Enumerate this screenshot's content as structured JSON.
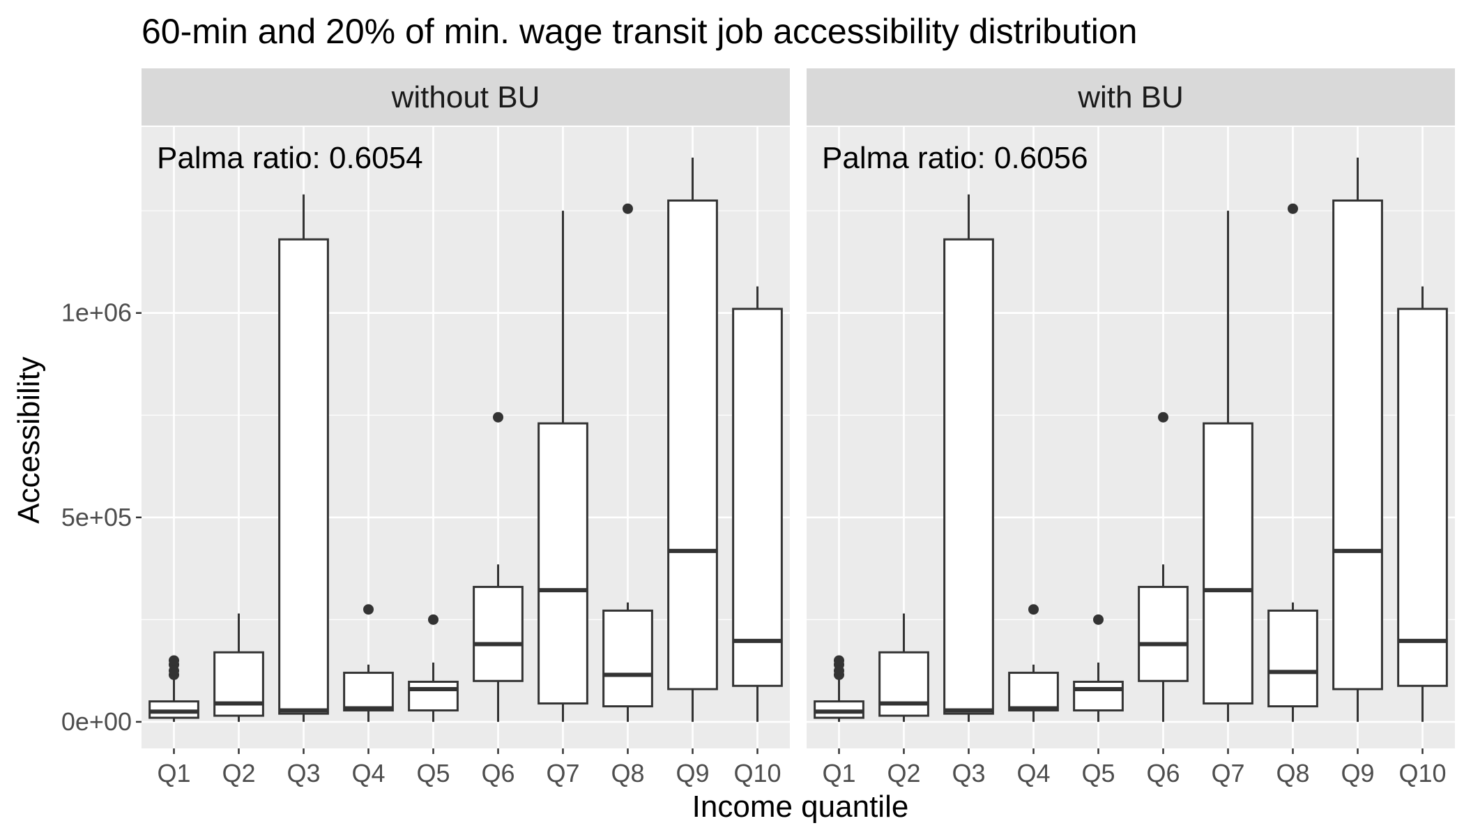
{
  "chart_data": {
    "type": "boxplot",
    "title": "60-min and 20% of min. wage transit job accessibility distribution",
    "xlabel": "Income quantile",
    "ylabel": "Accessibility",
    "ylim": [
      -65000,
      1455000
    ],
    "y_ticks": [
      {
        "value": 0,
        "label": "0e+00"
      },
      {
        "value": 500000,
        "label": "5e+05"
      },
      {
        "value": 1000000,
        "label": "1e+06"
      }
    ],
    "categories": [
      "Q1",
      "Q2",
      "Q3",
      "Q4",
      "Q5",
      "Q6",
      "Q7",
      "Q8",
      "Q9",
      "Q10"
    ],
    "panels": [
      {
        "name": "without BU",
        "annotation": "Palma ratio: 0.6054",
        "boxes": [
          {
            "category": "Q1",
            "whisker_low": 0,
            "q1": 10000,
            "median": 25000,
            "q3": 50000,
            "whisker_high": 105000,
            "outliers": [
              115000,
              125000,
              140000,
              150000
            ]
          },
          {
            "category": "Q2",
            "whisker_low": 0,
            "q1": 15000,
            "median": 45000,
            "q3": 170000,
            "whisker_high": 265000,
            "outliers": []
          },
          {
            "category": "Q3",
            "whisker_low": 0,
            "q1": 20000,
            "median": 28000,
            "q3": 1180000,
            "whisker_high": 1290000,
            "outliers": []
          },
          {
            "category": "Q4",
            "whisker_low": 0,
            "q1": 28000,
            "median": 33000,
            "q3": 120000,
            "whisker_high": 140000,
            "outliers": [
              275000
            ]
          },
          {
            "category": "Q5",
            "whisker_low": 0,
            "q1": 28000,
            "median": 80000,
            "q3": 98000,
            "whisker_high": 145000,
            "outliers": [
              250000
            ]
          },
          {
            "category": "Q6",
            "whisker_low": 0,
            "q1": 100000,
            "median": 190000,
            "q3": 330000,
            "whisker_high": 385000,
            "outliers": [
              745000
            ]
          },
          {
            "category": "Q7",
            "whisker_low": 0,
            "q1": 45000,
            "median": 322000,
            "q3": 730000,
            "whisker_high": 1250000,
            "outliers": []
          },
          {
            "category": "Q8",
            "whisker_low": 0,
            "q1": 38000,
            "median": 115000,
            "q3": 272000,
            "whisker_high": 292000,
            "outliers": [
              1255000
            ]
          },
          {
            "category": "Q9",
            "whisker_low": 0,
            "q1": 80000,
            "median": 418000,
            "q3": 1275000,
            "whisker_high": 1380000,
            "outliers": []
          },
          {
            "category": "Q10",
            "whisker_low": 0,
            "q1": 88000,
            "median": 198000,
            "q3": 1010000,
            "whisker_high": 1065000,
            "outliers": []
          }
        ]
      },
      {
        "name": "with BU",
        "annotation": "Palma ratio: 0.6056",
        "boxes": [
          {
            "category": "Q1",
            "whisker_low": 0,
            "q1": 10000,
            "median": 25000,
            "q3": 50000,
            "whisker_high": 105000,
            "outliers": [
              115000,
              125000,
              140000,
              150000
            ]
          },
          {
            "category": "Q2",
            "whisker_low": 0,
            "q1": 15000,
            "median": 45000,
            "q3": 170000,
            "whisker_high": 265000,
            "outliers": []
          },
          {
            "category": "Q3",
            "whisker_low": 0,
            "q1": 20000,
            "median": 28000,
            "q3": 1180000,
            "whisker_high": 1290000,
            "outliers": []
          },
          {
            "category": "Q4",
            "whisker_low": 0,
            "q1": 28000,
            "median": 33000,
            "q3": 120000,
            "whisker_high": 140000,
            "outliers": [
              275000
            ]
          },
          {
            "category": "Q5",
            "whisker_low": 0,
            "q1": 28000,
            "median": 80000,
            "q3": 98000,
            "whisker_high": 145000,
            "outliers": [
              250000
            ]
          },
          {
            "category": "Q6",
            "whisker_low": 0,
            "q1": 100000,
            "median": 190000,
            "q3": 330000,
            "whisker_high": 385000,
            "outliers": [
              745000
            ]
          },
          {
            "category": "Q7",
            "whisker_low": 0,
            "q1": 45000,
            "median": 322000,
            "q3": 730000,
            "whisker_high": 1250000,
            "outliers": []
          },
          {
            "category": "Q8",
            "whisker_low": 0,
            "q1": 38000,
            "median": 122000,
            "q3": 272000,
            "whisker_high": 292000,
            "outliers": [
              1255000
            ]
          },
          {
            "category": "Q9",
            "whisker_low": 0,
            "q1": 80000,
            "median": 418000,
            "q3": 1275000,
            "whisker_high": 1380000,
            "outliers": []
          },
          {
            "category": "Q10",
            "whisker_low": 0,
            "q1": 88000,
            "median": 198000,
            "q3": 1010000,
            "whisker_high": 1065000,
            "outliers": []
          }
        ]
      }
    ],
    "grid": true,
    "legend": "none",
    "colors": {
      "panel_bg": "#EBEBEB",
      "strip_bg": "#D9D9D9",
      "grid": "#FFFFFF",
      "box_fill": "#FFFFFF",
      "box_line": "#333333",
      "tick_text": "#4D4D4D"
    }
  }
}
